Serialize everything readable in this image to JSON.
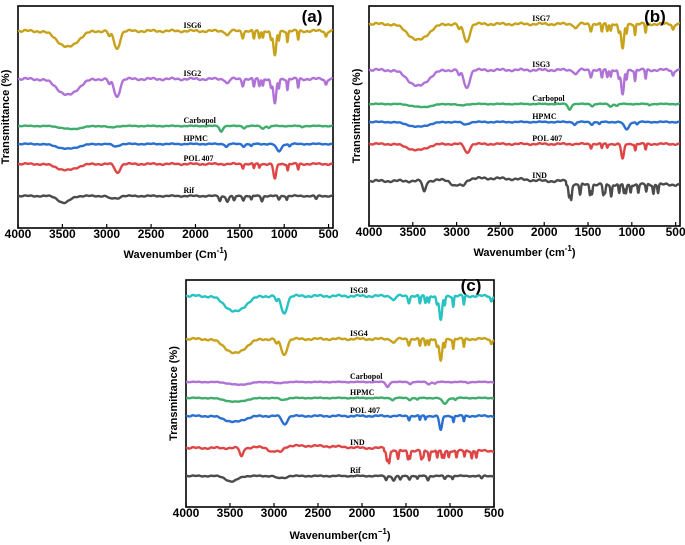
{
  "colors": {
    "gold": "#c8a21a",
    "violet": "#b072d6",
    "green": "#3fae6d",
    "blue": "#2b6fd1",
    "red": "#e04545",
    "gray": "#4b4b4b",
    "cyan": "#27c2c2"
  },
  "chart_data": [
    {
      "type": "line",
      "panel_label": "(a)",
      "xlabel_main": "Wavenumber (Cm",
      "xlabel_sup": "-1",
      "xlabel_tail": ")",
      "ylabel": "Transmittance (%)",
      "xlim": [
        4000,
        450
      ],
      "x_ticks": [
        "4000",
        "3500",
        "3000",
        "2500",
        "2000",
        "1500",
        "1000",
        "500"
      ],
      "x_tick_values": [
        4000,
        3500,
        3000,
        2500,
        2000,
        1500,
        1000,
        500
      ],
      "series": [
        {
          "name": "ISG6",
          "color": "gold",
          "style": "gel",
          "depth": 1.0
        },
        {
          "name": "ISG2",
          "color": "violet",
          "style": "gel",
          "depth": 1.0
        },
        {
          "name": "Carbopol",
          "color": "green",
          "style": "carbopol",
          "depth": 0.35
        },
        {
          "name": "HPMC",
          "color": "blue",
          "style": "hpmc",
          "depth": 0.45
        },
        {
          "name": "POL 407",
          "color": "red",
          "style": "pol",
          "depth": 0.7
        },
        {
          "name": "Rif",
          "color": "gray",
          "style": "rif",
          "depth": 0.55
        }
      ]
    },
    {
      "type": "line",
      "panel_label": "(b)",
      "xlabel_main": "Wavenumber (cm",
      "xlabel_sup": "-1",
      "xlabel_tail": ")",
      "ylabel": "Transmittance (%)",
      "xlim": [
        4000,
        450
      ],
      "x_ticks": [
        "4000",
        "3500",
        "3000",
        "2500",
        "2000",
        "1500",
        "1000",
        "500"
      ],
      "x_tick_values": [
        4000,
        3500,
        3000,
        2500,
        2000,
        1500,
        1000,
        500
      ],
      "series": [
        {
          "name": "ISG7",
          "color": "gold",
          "style": "gel",
          "depth": 1.0
        },
        {
          "name": "ISG3",
          "color": "violet",
          "style": "gel",
          "depth": 1.0
        },
        {
          "name": "Carbopol",
          "color": "green",
          "style": "carbopol",
          "depth": 0.35
        },
        {
          "name": "HPMC",
          "color": "blue",
          "style": "hpmc",
          "depth": 0.45
        },
        {
          "name": "POL 407",
          "color": "red",
          "style": "pol",
          "depth": 0.7
        },
        {
          "name": "IND",
          "color": "gray",
          "style": "ind",
          "depth": 1.0
        }
      ]
    },
    {
      "type": "line",
      "panel_label": "(c)",
      "xlabel_main": "Wavenumber(cm",
      "xlabel_sup": "−1",
      "xlabel_tail": ")",
      "ylabel": "Transmittance (%)",
      "xlim": [
        4000,
        500
      ],
      "x_ticks": [
        "4000",
        "3500",
        "3000",
        "2500",
        "2000",
        "1500",
        "1000",
        "500"
      ],
      "x_tick_values": [
        4000,
        3500,
        3000,
        2500,
        2000,
        1500,
        1000,
        500
      ],
      "series": [
        {
          "name": "ISG8",
          "color": "cyan",
          "style": "gel",
          "depth": 1.1
        },
        {
          "name": "ISG4",
          "color": "gold",
          "style": "gel",
          "depth": 1.0
        },
        {
          "name": "Carbopol",
          "color": "violet",
          "style": "carbopol",
          "depth": 0.35
        },
        {
          "name": "HPMC",
          "color": "green",
          "style": "hpmc",
          "depth": 0.4
        },
        {
          "name": "POL 407",
          "color": "blue",
          "style": "pol",
          "depth": 0.75
        },
        {
          "name": "IND",
          "color": "red",
          "style": "ind",
          "depth": 0.9
        },
        {
          "name": "Rif",
          "color": "gray",
          "style": "rif",
          "depth": 0.5
        }
      ]
    }
  ]
}
